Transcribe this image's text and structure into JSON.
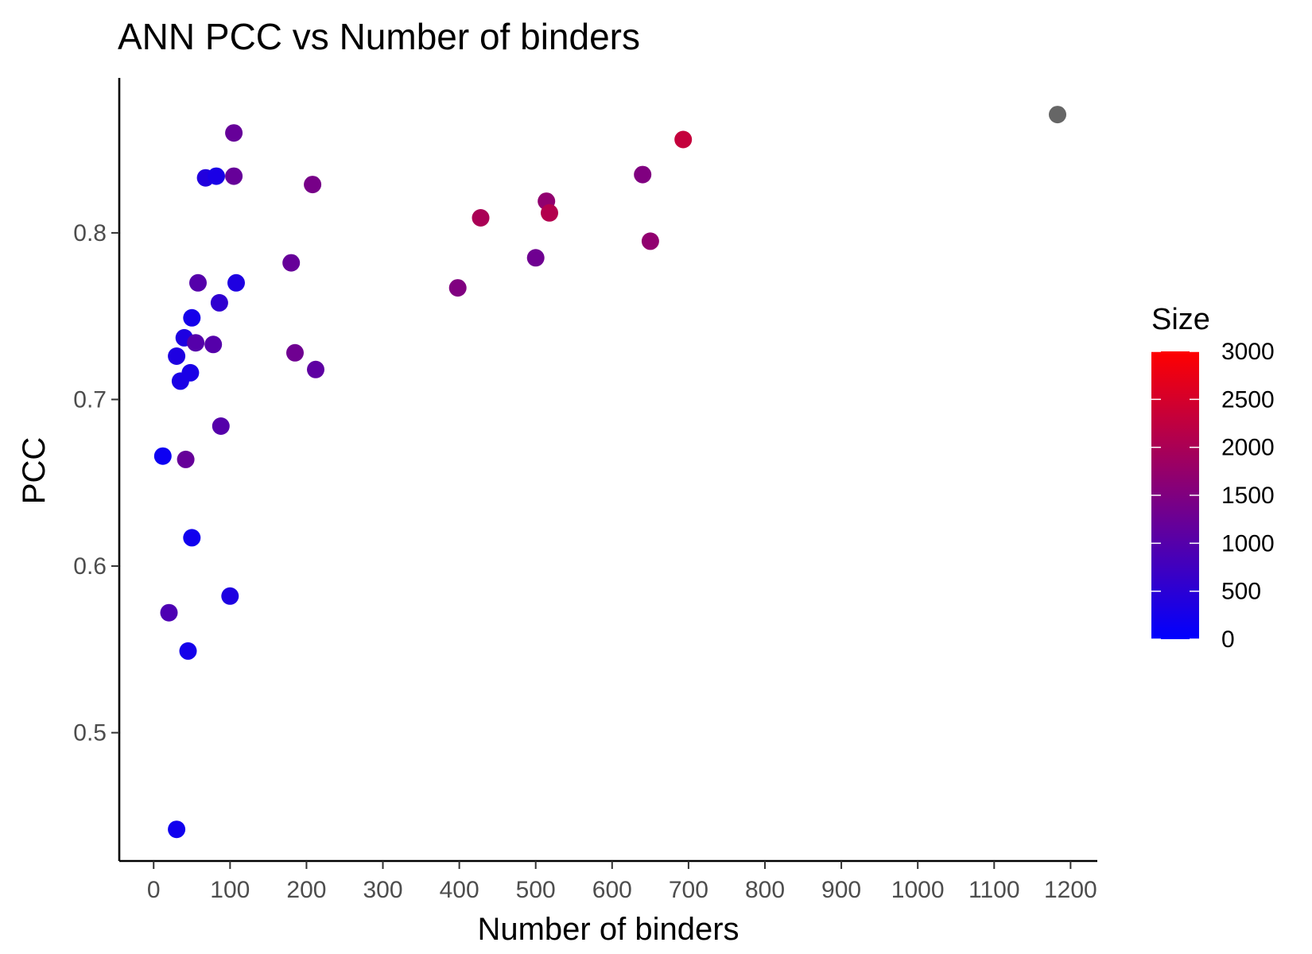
{
  "chart_data": {
    "type": "scatter",
    "title": "ANN PCC vs Number of binders",
    "xlabel": "Number of binders",
    "ylabel": "PCC",
    "xlim": [
      -45,
      1235
    ],
    "ylim": [
      0.423,
      0.893
    ],
    "x_ticks": [
      0,
      100,
      200,
      300,
      400,
      500,
      600,
      700,
      800,
      900,
      1000,
      1100,
      1200
    ],
    "y_ticks": [
      0.5,
      0.6,
      0.7,
      0.8
    ],
    "grid": false,
    "legend": {
      "title": "Size",
      "position": "right",
      "type": "colorbar",
      "low_color": "#0000ff",
      "high_color": "#ff0000",
      "range": [
        0,
        3000
      ],
      "breaks": [
        0,
        500,
        1000,
        1500,
        2000,
        2500,
        3000
      ]
    },
    "na_color": "#666666",
    "points": [
      {
        "x": 12,
        "y": 0.666,
        "size": 150
      },
      {
        "x": 20,
        "y": 0.572,
        "size": 900
      },
      {
        "x": 30,
        "y": 0.726,
        "size": 350
      },
      {
        "x": 30,
        "y": 0.442,
        "size": 200
      },
      {
        "x": 35,
        "y": 0.711,
        "size": 300
      },
      {
        "x": 40,
        "y": 0.737,
        "size": 350
      },
      {
        "x": 42,
        "y": 0.664,
        "size": 1200
      },
      {
        "x": 45,
        "y": 0.549,
        "size": 250
      },
      {
        "x": 48,
        "y": 0.716,
        "size": 300
      },
      {
        "x": 50,
        "y": 0.617,
        "size": 200
      },
      {
        "x": 50,
        "y": 0.749,
        "size": 250
      },
      {
        "x": 55,
        "y": 0.734,
        "size": 1000
      },
      {
        "x": 58,
        "y": 0.77,
        "size": 1000
      },
      {
        "x": 68,
        "y": 0.833,
        "size": 400
      },
      {
        "x": 78,
        "y": 0.733,
        "size": 1000
      },
      {
        "x": 82,
        "y": 0.834,
        "size": 300
      },
      {
        "x": 86,
        "y": 0.758,
        "size": 550
      },
      {
        "x": 88,
        "y": 0.684,
        "size": 1000
      },
      {
        "x": 100,
        "y": 0.582,
        "size": 350
      },
      {
        "x": 105,
        "y": 0.834,
        "size": 1200
      },
      {
        "x": 105,
        "y": 0.86,
        "size": 1200
      },
      {
        "x": 108,
        "y": 0.77,
        "size": 350
      },
      {
        "x": 180,
        "y": 0.782,
        "size": 1200
      },
      {
        "x": 185,
        "y": 0.728,
        "size": 1300
      },
      {
        "x": 208,
        "y": 0.829,
        "size": 1400
      },
      {
        "x": 212,
        "y": 0.718,
        "size": 1100
      },
      {
        "x": 398,
        "y": 0.767,
        "size": 1500
      },
      {
        "x": 428,
        "y": 0.809,
        "size": 2000
      },
      {
        "x": 500,
        "y": 0.785,
        "size": 1300
      },
      {
        "x": 514,
        "y": 0.819,
        "size": 1700
      },
      {
        "x": 518,
        "y": 0.812,
        "size": 2100
      },
      {
        "x": 640,
        "y": 0.835,
        "size": 1500
      },
      {
        "x": 650,
        "y": 0.795,
        "size": 1700
      },
      {
        "x": 693,
        "y": 0.856,
        "size": 2300
      },
      {
        "x": 1183,
        "y": 0.871,
        "size": null
      }
    ]
  }
}
